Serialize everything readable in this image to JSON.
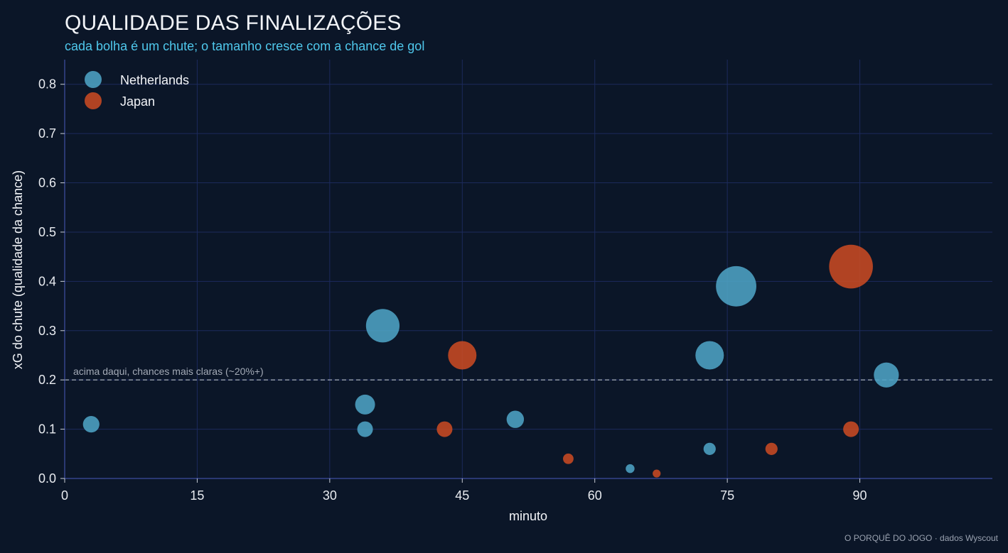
{
  "header": {
    "title": "QUALIDADE DAS FINALIZAÇÕES",
    "subtitle": "cada bolha é um chute; o tamanho cresce com a chance de gol"
  },
  "footer": {
    "credit": "O PORQUÊ DO JOGO · dados Wyscout"
  },
  "colors": {
    "background": "#0b1628",
    "grid": "#1c2a5c",
    "axis": "#34438a",
    "netherlands": "#4da3c4",
    "japan": "#c84a22",
    "reference_line": "#9aa2b0"
  },
  "chart_data": {
    "type": "scatter",
    "xlabel": "minuto",
    "ylabel": "xG do chute (qualidade da chance)",
    "xlim": [
      0,
      105
    ],
    "ylim": [
      0,
      0.85
    ],
    "xticks": [
      0,
      15,
      30,
      45,
      60,
      75,
      90
    ],
    "yticks": [
      0.0,
      0.1,
      0.2,
      0.3,
      0.4,
      0.5,
      0.6,
      0.7,
      0.8
    ],
    "grid": true,
    "legend_position": "top-left",
    "reference_line": {
      "y": 0.2,
      "label": "acima daqui, chances mais claras (~20%+)"
    },
    "series": [
      {
        "name": "Netherlands",
        "points": [
          {
            "x": 3,
            "y": 0.11
          },
          {
            "x": 34,
            "y": 0.15
          },
          {
            "x": 34,
            "y": 0.1
          },
          {
            "x": 36,
            "y": 0.31
          },
          {
            "x": 51,
            "y": 0.12
          },
          {
            "x": 64,
            "y": 0.02
          },
          {
            "x": 73,
            "y": 0.25
          },
          {
            "x": 73,
            "y": 0.06
          },
          {
            "x": 76,
            "y": 0.39
          },
          {
            "x": 93,
            "y": 0.21
          }
        ]
      },
      {
        "name": "Japan",
        "points": [
          {
            "x": 43,
            "y": 0.1
          },
          {
            "x": 45,
            "y": 0.25
          },
          {
            "x": 57,
            "y": 0.04
          },
          {
            "x": 67,
            "y": 0.01
          },
          {
            "x": 80,
            "y": 0.06
          },
          {
            "x": 89,
            "y": 0.43
          },
          {
            "x": 89,
            "y": 0.1
          }
        ]
      }
    ]
  }
}
